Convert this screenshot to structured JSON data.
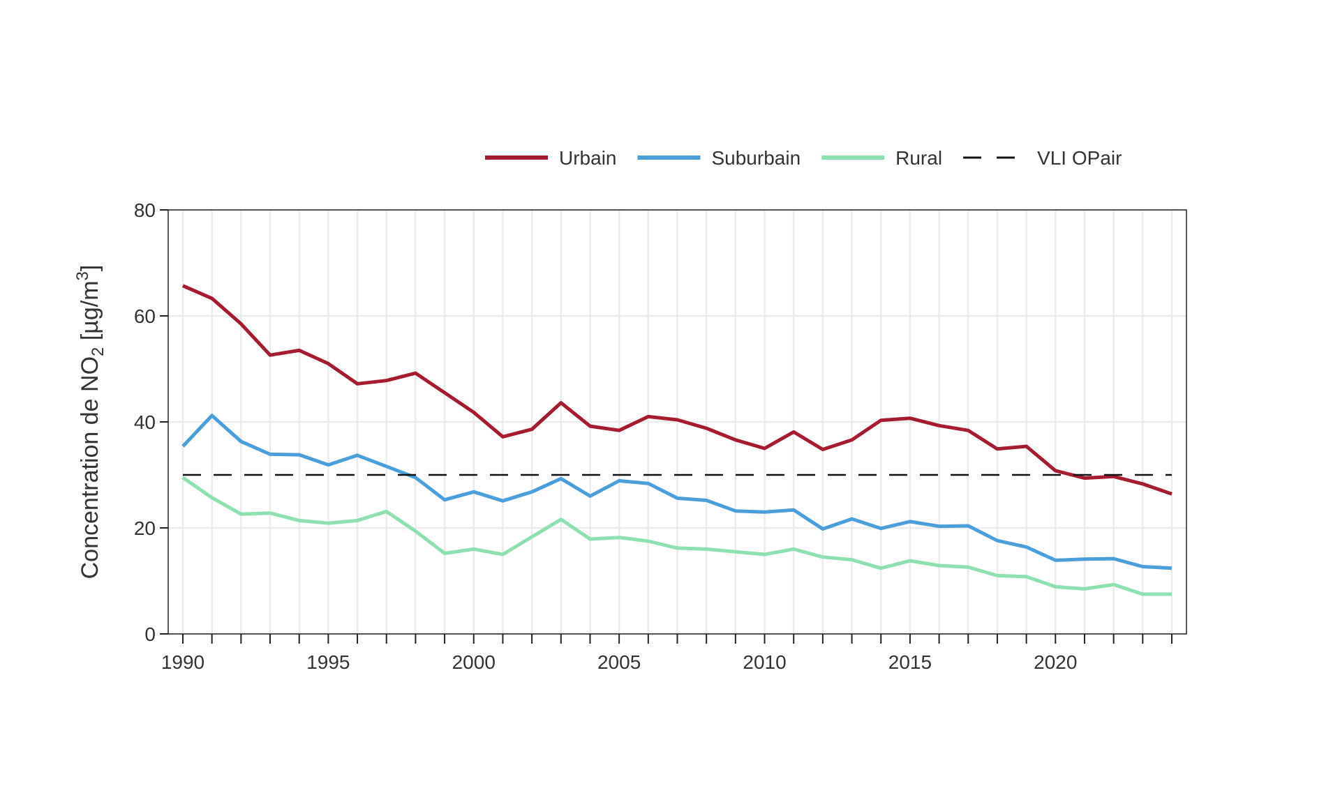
{
  "chart_data": {
    "type": "line",
    "title": "",
    "xlabel": "",
    "ylabel": {
      "prefix": "Concentration de NO",
      "sub": "2",
      "middle": " [µg/m",
      "sup": "3",
      "suffix": "]"
    },
    "xlim": [
      1990,
      2024
    ],
    "ylim": [
      0,
      80
    ],
    "x_ticks": [
      1990,
      1995,
      2000,
      2005,
      2010,
      2015,
      2020
    ],
    "y_ticks": [
      0,
      20,
      40,
      60,
      80
    ],
    "grid": true,
    "legend_position": "top",
    "x": [
      1990,
      1991,
      1992,
      1993,
      1994,
      1995,
      1996,
      1997,
      1998,
      1999,
      2000,
      2001,
      2002,
      2003,
      2004,
      2005,
      2006,
      2007,
      2008,
      2009,
      2010,
      2011,
      2012,
      2013,
      2014,
      2015,
      2016,
      2017,
      2018,
      2019,
      2020,
      2021,
      2022,
      2023,
      2024
    ],
    "series": [
      {
        "name": "Urbain",
        "color": "#a51c30",
        "style": "solid",
        "values": [
          65.7,
          63.3,
          58.5,
          52.6,
          53.5,
          51.0,
          47.2,
          47.8,
          49.2,
          45.5,
          41.8,
          37.2,
          38.6,
          43.6,
          39.2,
          38.4,
          41.0,
          40.4,
          38.8,
          36.6,
          35.0,
          38.1,
          34.8,
          36.6,
          40.3,
          40.7,
          39.3,
          38.4,
          34.9,
          35.4,
          30.8,
          29.4,
          29.7,
          28.3,
          26.4
        ]
      },
      {
        "name": "Suburbain",
        "color": "#4a9fdb",
        "style": "solid",
        "values": [
          35.4,
          41.2,
          36.3,
          33.9,
          33.8,
          31.9,
          33.7,
          31.6,
          29.5,
          25.3,
          26.8,
          25.1,
          26.8,
          29.3,
          26.0,
          28.9,
          28.4,
          25.6,
          25.2,
          23.2,
          23.0,
          23.4,
          19.8,
          21.7,
          19.9,
          21.2,
          20.3,
          20.4,
          17.6,
          16.4,
          13.9,
          14.1,
          14.2,
          12.7,
          12.4
        ]
      },
      {
        "name": "Rural",
        "color": "#8ee0b0",
        "style": "solid",
        "values": [
          29.5,
          25.7,
          22.6,
          22.8,
          21.4,
          20.9,
          21.4,
          23.1,
          19.4,
          15.2,
          16.0,
          15.0,
          18.3,
          21.6,
          17.9,
          18.2,
          17.5,
          16.2,
          16.0,
          15.5,
          15.0,
          16.0,
          14.5,
          14.0,
          12.4,
          13.8,
          12.9,
          12.6,
          11.0,
          10.8,
          8.9,
          8.5,
          9.3,
          7.5,
          7.5
        ]
      },
      {
        "name": "VLI OPair",
        "color": "#111111",
        "style": "dashed",
        "values": [
          30,
          30,
          30,
          30,
          30,
          30,
          30,
          30,
          30,
          30,
          30,
          30,
          30,
          30,
          30,
          30,
          30,
          30,
          30,
          30,
          30,
          30,
          30,
          30,
          30,
          30,
          30,
          30,
          30,
          30,
          30,
          30,
          30,
          30,
          30
        ]
      }
    ]
  }
}
